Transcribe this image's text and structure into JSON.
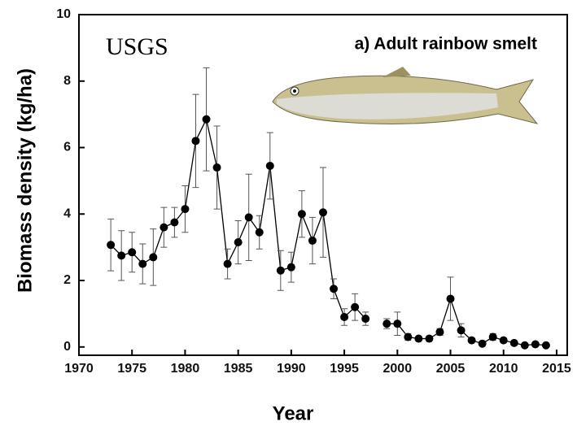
{
  "chart_data": {
    "type": "line",
    "annotations": [
      "USGS",
      "a) Adult rainbow smelt"
    ],
    "xlabel": "Year",
    "ylabel": "Biomass density (kg/ha)",
    "x": [
      1973,
      1974,
      1975,
      1976,
      1977,
      1978,
      1979,
      1980,
      1981,
      1982,
      1983,
      1984,
      1985,
      1986,
      1987,
      1988,
      1989,
      1990,
      1991,
      1992,
      1993,
      1994,
      1995,
      1996,
      1997,
      1998,
      1999,
      2000,
      2001,
      2002,
      2003,
      2004,
      2005,
      2006,
      2007,
      2008,
      2009,
      2010,
      2011,
      2012,
      2013,
      2014
    ],
    "series": [
      {
        "color": "#000000",
        "values": [
          3.07,
          2.75,
          2.85,
          2.5,
          2.7,
          3.6,
          3.75,
          4.15,
          6.2,
          6.85,
          5.4,
          2.5,
          3.15,
          3.9,
          3.45,
          5.45,
          2.3,
          2.4,
          4.0,
          3.2,
          4.05,
          1.75,
          0.9,
          1.2,
          0.85,
          null,
          0.7,
          0.7,
          0.3,
          0.25,
          0.25,
          0.45,
          1.45,
          0.5,
          0.2,
          0.1,
          0.3,
          0.2,
          0.12,
          0.05,
          0.08,
          0.05
        ],
        "errors": [
          0.78,
          0.75,
          0.6,
          0.6,
          0.85,
          0.6,
          0.45,
          0.7,
          1.4,
          1.55,
          1.25,
          0.45,
          0.65,
          1.3,
          0.5,
          1.0,
          0.6,
          0.45,
          0.7,
          0.7,
          1.35,
          0.3,
          0.25,
          0.4,
          0.2,
          null,
          0.15,
          0.35,
          0.1,
          0.05,
          0.05,
          0.1,
          0.65,
          0.2,
          0.05,
          0.05,
          0.1,
          0.05,
          0.05,
          0.03,
          0.03,
          0.03
        ]
      }
    ],
    "xlim": [
      1970,
      2016
    ],
    "xticks": [
      1970,
      1975,
      1980,
      1985,
      1990,
      1995,
      2000,
      2005,
      2010,
      2015
    ],
    "ylim": [
      -0.25,
      10
    ],
    "yticks": [
      0,
      2,
      4,
      6,
      8,
      10
    ]
  }
}
